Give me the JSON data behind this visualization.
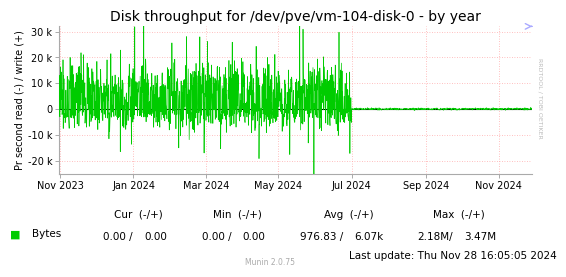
{
  "title": "Disk throughput for /dev/pve/vm-104-disk-0 - by year",
  "ylabel": "Pr second read (-) / write (+)",
  "background_color": "#ffffff",
  "plot_bg_color": "#ffffff",
  "grid_color": "#ffaaaa",
  "line_color": "#00cc00",
  "zero_line_color": "#000000",
  "ylim": [
    -25000,
    32000
  ],
  "yticks": [
    -20000,
    -10000,
    0,
    10000,
    20000,
    30000
  ],
  "ytick_labels": [
    "-20 k",
    "-10 k",
    "0",
    "10 k",
    "20 k",
    "30 k"
  ],
  "xstart": 1698710400,
  "xend": 1732838400,
  "xtick_positions": [
    1698796800,
    1704067200,
    1709280000,
    1714521600,
    1719792000,
    1725148800,
    1730419200
  ],
  "xtick_labels": [
    "Nov 2023",
    "Jan 2024",
    "Mar 2024",
    "May 2024",
    "Jul 2024",
    "Sep 2024",
    "Nov 2024"
  ],
  "active_end": 1719792000,
  "legend_label": "Bytes",
  "legend_color": "#00cc00",
  "cur_neg": "0.00",
  "cur_pos": "0.00",
  "min_neg": "0.00",
  "min_pos": "0.00",
  "avg_neg": "976.83",
  "avg_pos": "6.07k",
  "max_neg": "2.18M",
  "max_pos": "3.47M",
  "last_update": "Last update: Thu Nov 28 16:05:05 2024",
  "munin_version": "Munin 2.0.75",
  "rrdtool_label": "RRDTOOL / TOBI OETIKER",
  "title_fontsize": 10,
  "axis_label_fontsize": 7,
  "tick_fontsize": 7,
  "legend_fontsize": 7.5,
  "table_fontsize": 7.5
}
